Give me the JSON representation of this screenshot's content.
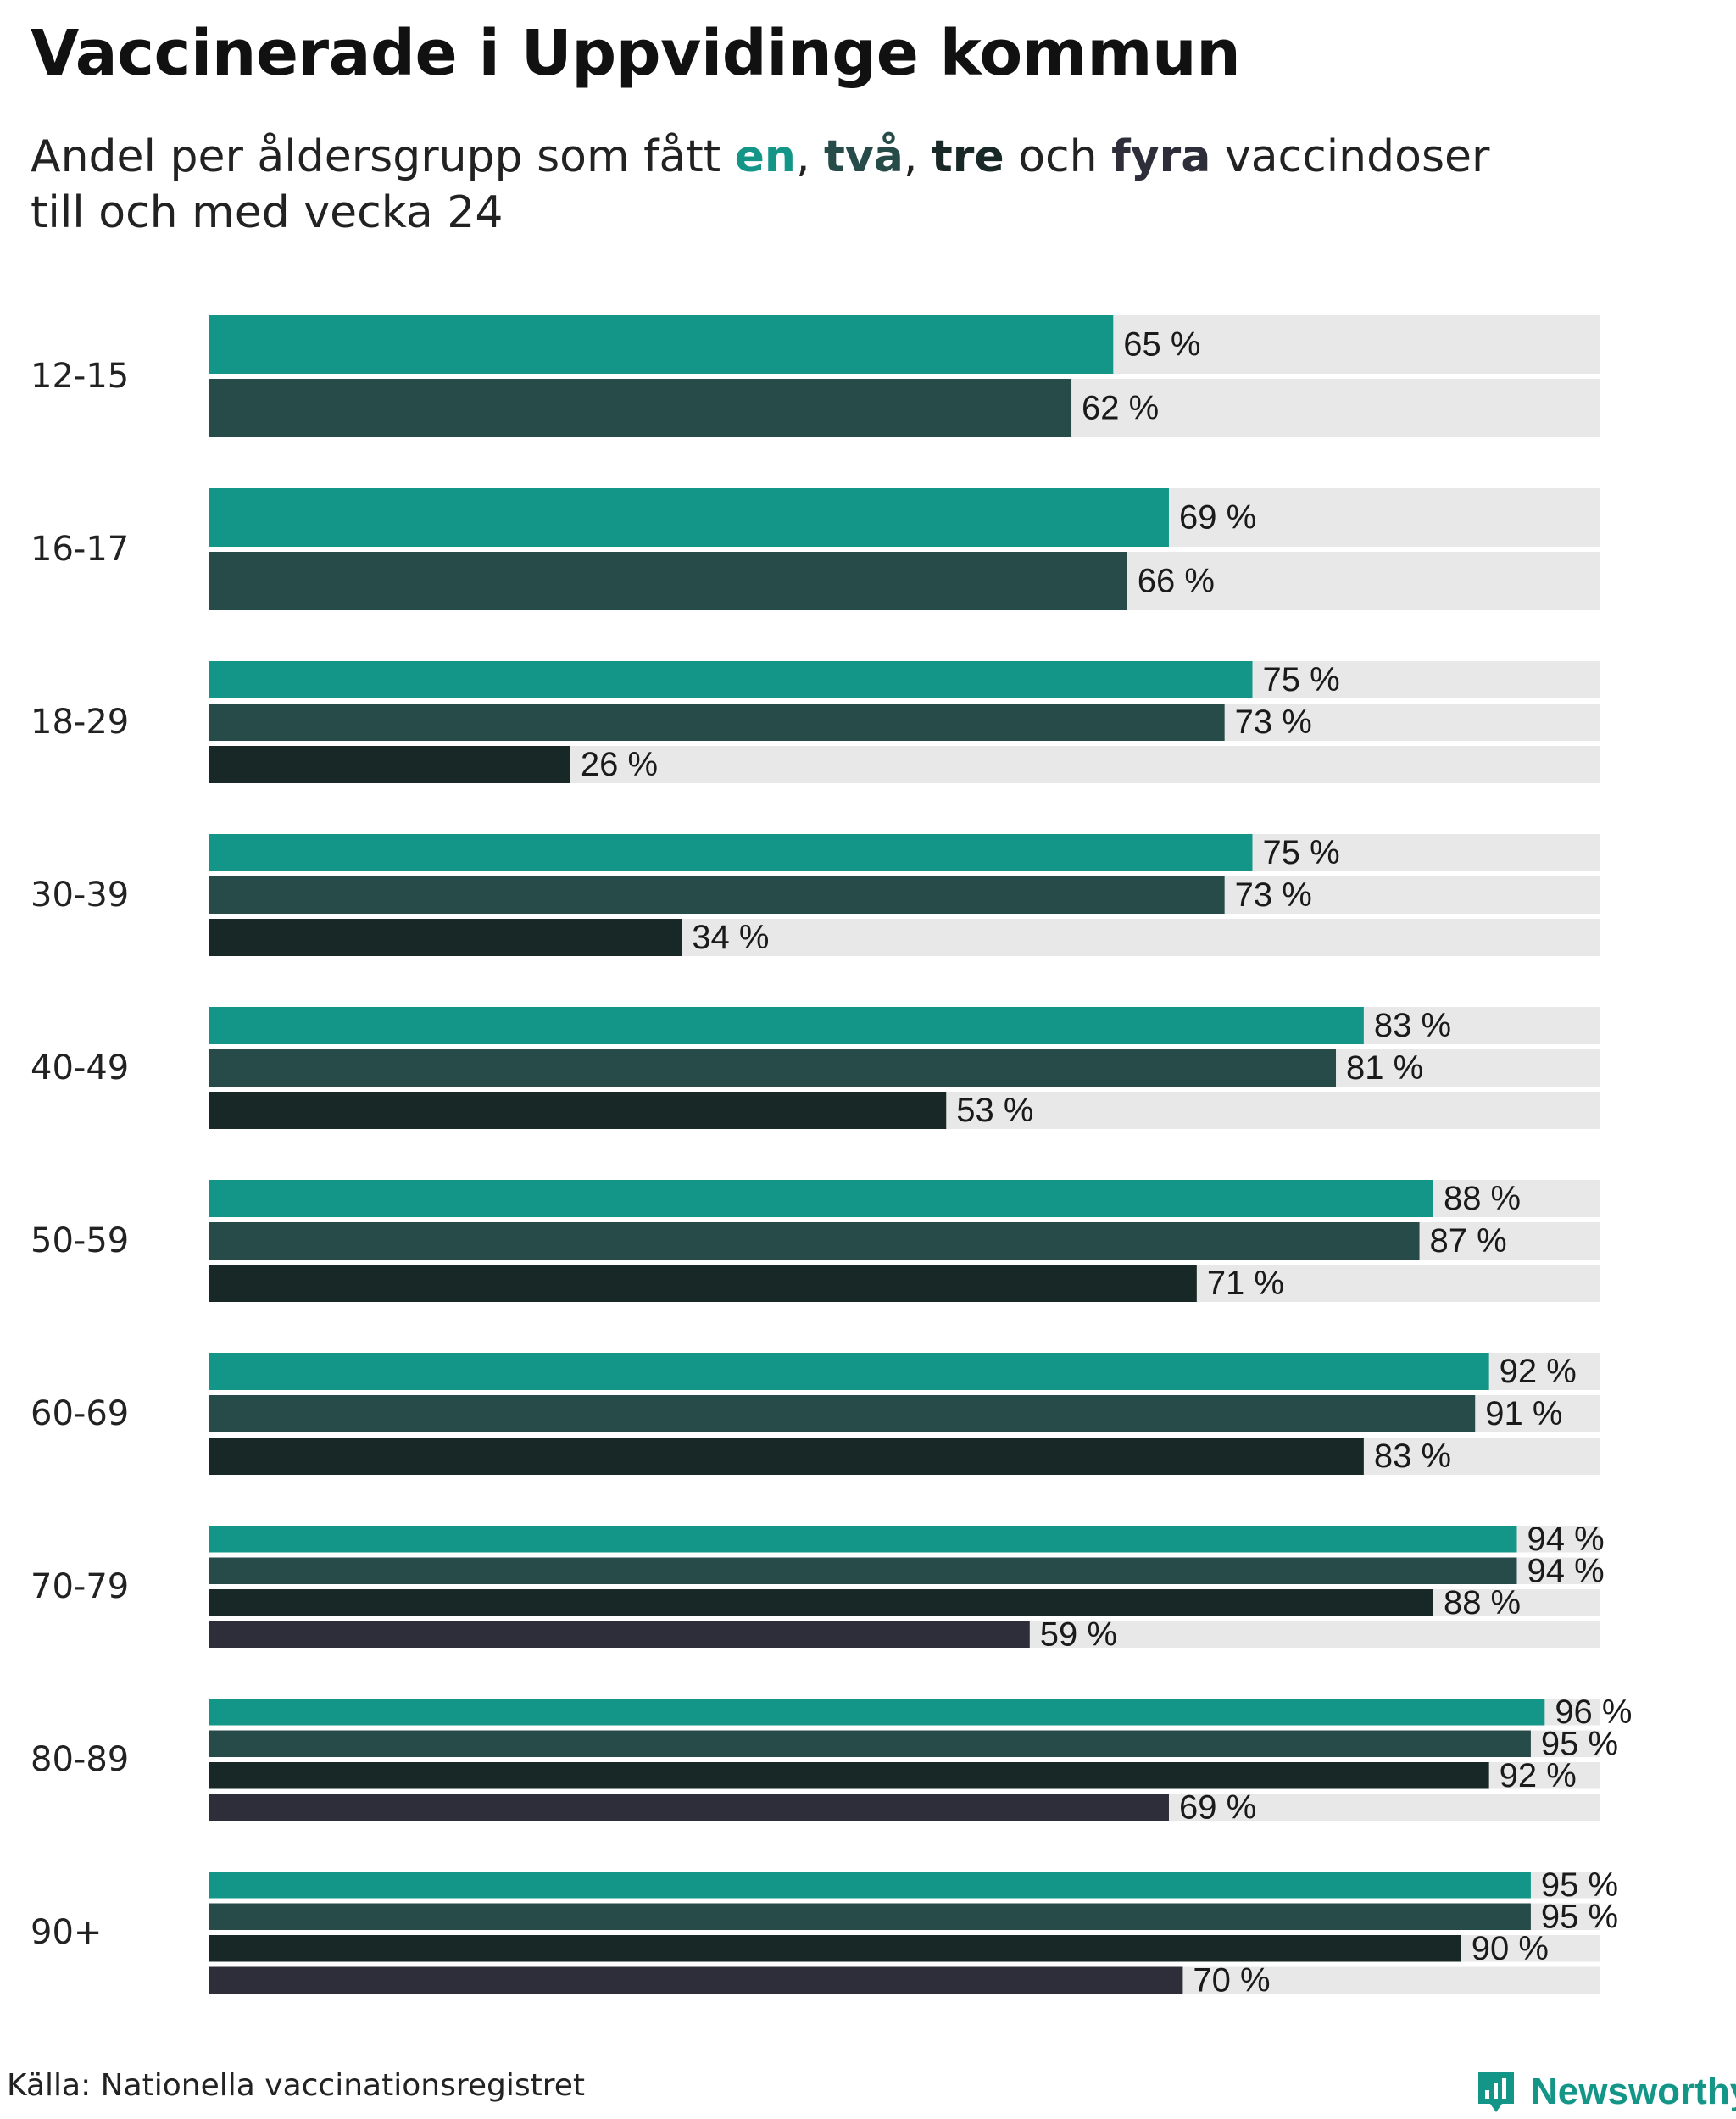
{
  "chart_data": {
    "type": "bar",
    "orientation": "horizontal",
    "title": "Vaccinerade i Uppvidinge kommun",
    "subtitle": {
      "prefix": "Andel per åldersgrupp som fått ",
      "dose1": "en",
      "sep1": ", ",
      "dose2": "två",
      "sep2": ", ",
      "dose3": "tre",
      "sep3": " och ",
      "dose4": "fyra",
      "suffix": " vaccindoser",
      "line2": "till och med vecka 24"
    },
    "categories": [
      "12-15",
      "16-17",
      "18-29",
      "30-39",
      "40-49",
      "50-59",
      "60-69",
      "70-79",
      "80-89",
      "90+"
    ],
    "series": [
      {
        "name": "en",
        "color": "#139688",
        "values": [
          65,
          69,
          75,
          75,
          83,
          88,
          92,
          94,
          96,
          95
        ]
      },
      {
        "name": "två",
        "color": "#264b49",
        "values": [
          62,
          66,
          73,
          73,
          81,
          87,
          91,
          94,
          95,
          95
        ]
      },
      {
        "name": "tre",
        "color": "#182826",
        "values": [
          null,
          null,
          26,
          34,
          53,
          71,
          83,
          88,
          92,
          90
        ]
      },
      {
        "name": "fyra",
        "color": "#2e2d3a",
        "values": [
          null,
          null,
          null,
          null,
          null,
          null,
          null,
          59,
          69,
          70
        ]
      }
    ],
    "value_suffix": " %",
    "xlim": [
      0,
      100
    ],
    "background_track_color": "#e8e8e8"
  },
  "footer": {
    "source": "Källa: Nationella vaccinationsregistret",
    "brand": "Newsworthy",
    "brand_color": "#139688"
  }
}
